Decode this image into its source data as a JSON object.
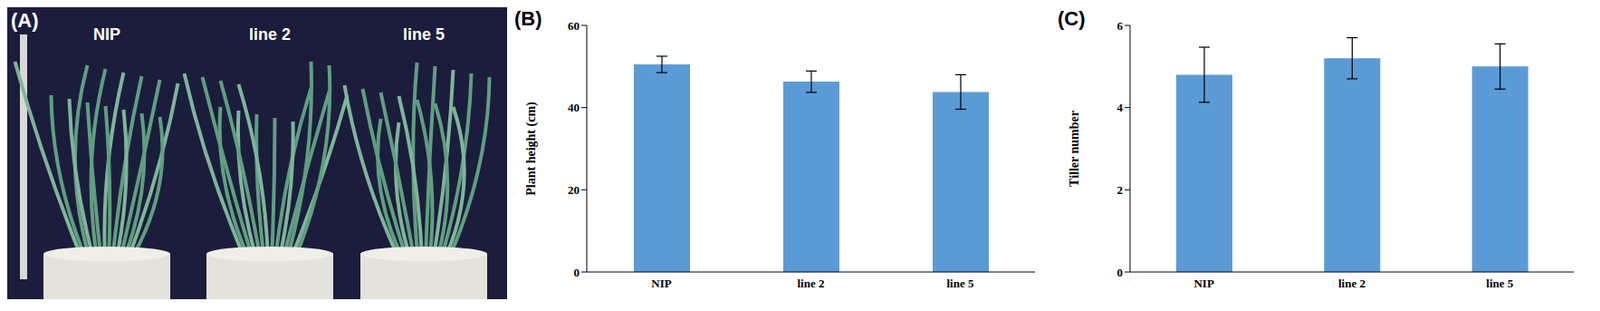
{
  "photo": {
    "panel": "(A)",
    "labels": [
      "NIP",
      "line 2",
      "line 5"
    ]
  },
  "chart_data": [
    {
      "type": "bar",
      "title": "(B)",
      "categories": [
        "NIP",
        "line 2",
        "line 5"
      ],
      "values": [
        50.5,
        46.3,
        43.8
      ],
      "errors": [
        2.0,
        2.6,
        4.2
      ],
      "color": "#5b9bd5",
      "y_label": "Plant height (cm)",
      "ylim": [
        0,
        60
      ],
      "yticks": [
        0,
        20,
        40,
        60
      ],
      "grid": false
    },
    {
      "type": "bar",
      "title": "(C)",
      "categories": [
        "NIP",
        "line 2",
        "line 5"
      ],
      "values": [
        4.8,
        5.2,
        5.0
      ],
      "errors": [
        0.67,
        0.5,
        0.55
      ],
      "color": "#5b9bd5",
      "y_label": "Tiller number",
      "ylim": [
        0,
        6
      ],
      "yticks": [
        0,
        2,
        4,
        6
      ],
      "grid": false
    }
  ]
}
